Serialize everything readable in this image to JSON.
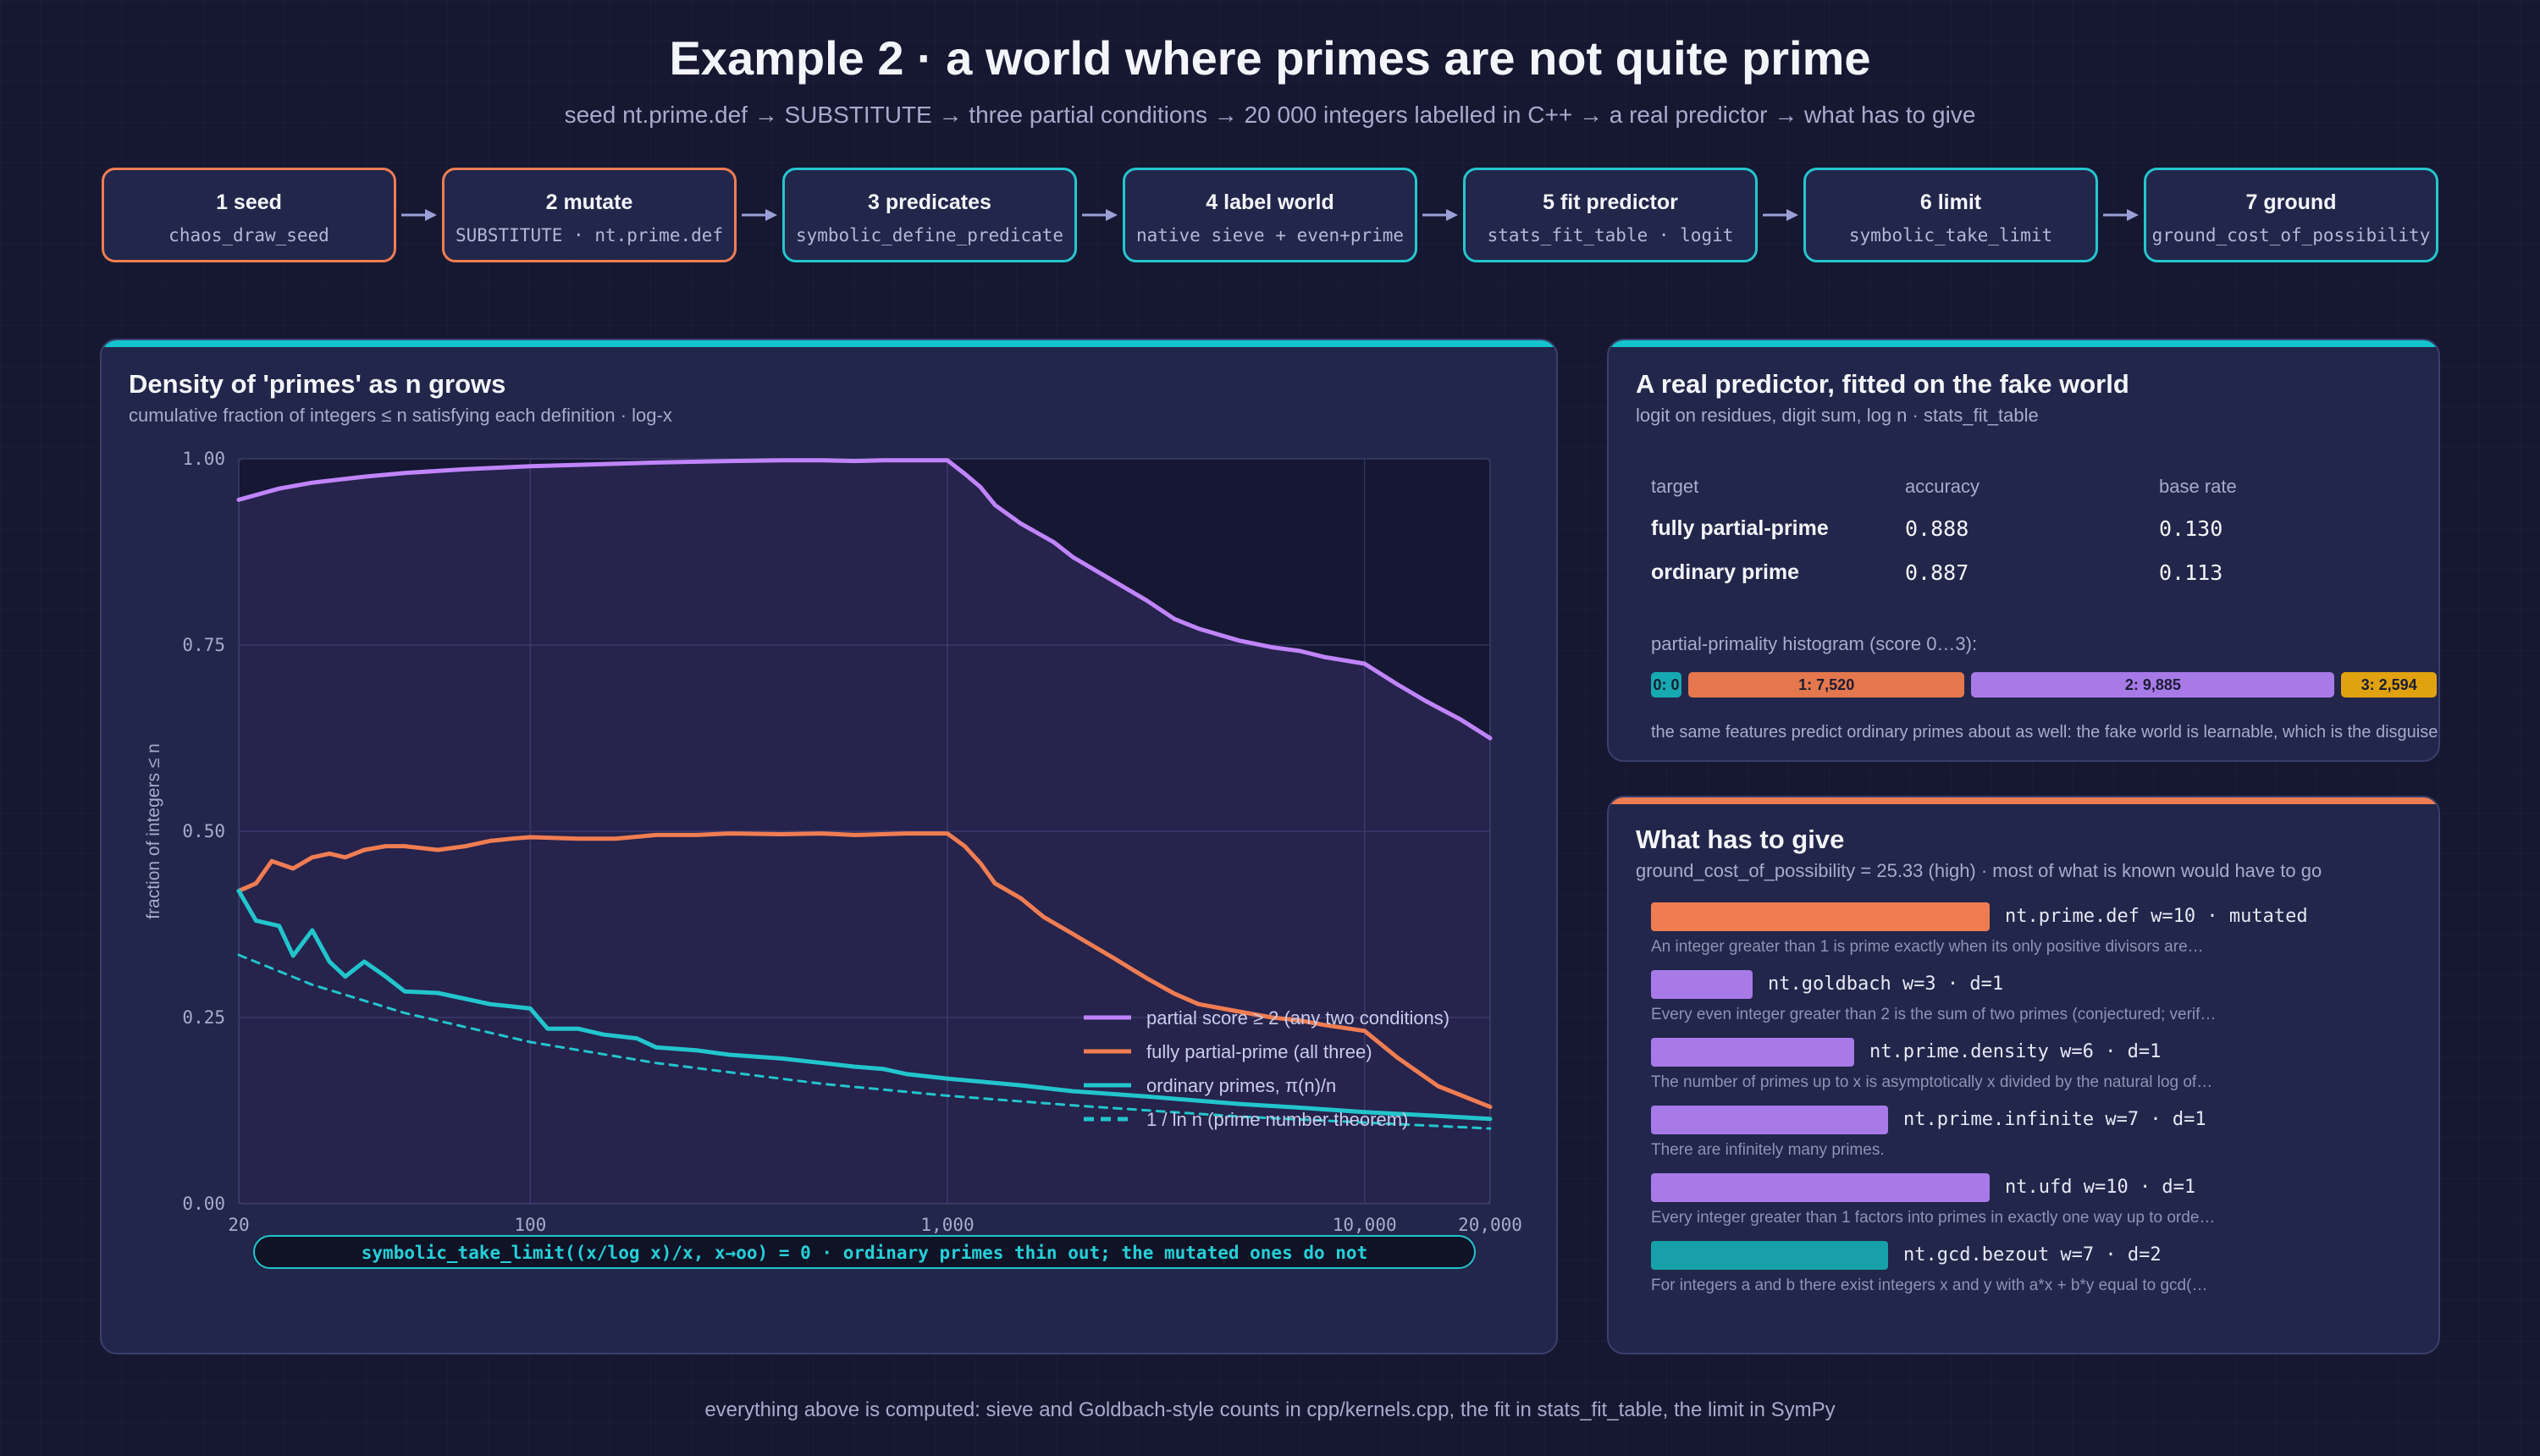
{
  "header": {
    "title": "Example 2 · a world where primes are not quite prime",
    "subtitle": "seed nt.prime.def → SUBSTITUTE → three partial conditions → 20 000 integers labelled in C++ → a real predictor → what has to give"
  },
  "pipeline": [
    {
      "title": "1 seed",
      "sub": "chaos_draw_seed",
      "accent": "orange"
    },
    {
      "title": "2 mutate",
      "sub": "SUBSTITUTE · nt.prime.def",
      "accent": "orange"
    },
    {
      "title": "3 predicates",
      "sub": "symbolic_define_predicate",
      "accent": "teal"
    },
    {
      "title": "4 label world",
      "sub": "native sieve + even+prime",
      "accent": "teal"
    },
    {
      "title": "5 fit predictor",
      "sub": "stats_fit_table · logit",
      "accent": "teal"
    },
    {
      "title": "6 limit",
      "sub": "symbolic_take_limit",
      "accent": "teal"
    },
    {
      "title": "7 ground",
      "sub": "ground_cost_of_possibility",
      "accent": "teal"
    }
  ],
  "density_panel": {
    "title": "Density of 'primes' as n grows",
    "subtitle": "cumulative fraction of integers ≤ n satisfying each definition · log-x",
    "limit_note": "symbolic_take_limit((x/log x)/x, x→oo) = 0 · ordinary primes thin out; the mutated ones do not"
  },
  "chart_data": {
    "type": "line",
    "title": "Density of 'primes' as n grows",
    "subtitle": "cumulative fraction of integers ≤ n satisfying each definition · log-x",
    "xlabel": "",
    "ylabel": "fraction of integers ≤ n",
    "xscale": "log",
    "xlim": [
      20,
      20000
    ],
    "ylim": [
      0,
      1
    ],
    "x_ticks": [
      {
        "value": 20,
        "label": "20"
      },
      {
        "value": 100,
        "label": "100"
      },
      {
        "value": 1000,
        "label": "1,000"
      },
      {
        "value": 10000,
        "label": "10,000"
      },
      {
        "value": 20000,
        "label": "20,000"
      }
    ],
    "y_ticks": [
      {
        "value": 0,
        "label": "0.00"
      },
      {
        "value": 0.25,
        "label": "0.25"
      },
      {
        "value": 0.5,
        "label": "0.50"
      },
      {
        "value": 0.75,
        "label": "0.75"
      },
      {
        "value": 1,
        "label": "1.00"
      }
    ],
    "grid": true,
    "legend_position": "bottom-right",
    "series": [
      {
        "name": "partial score ≥ 2 (any two conditions)",
        "color": "#c084fc",
        "style": "solid",
        "x": [
          20,
          25,
          30,
          40,
          50,
          70,
          100,
          150,
          200,
          300,
          400,
          500,
          600,
          700,
          800,
          900,
          1000,
          1100,
          1200,
          1300,
          1500,
          1800,
          2000,
          2500,
          3000,
          3500,
          4000,
          5000,
          6000,
          7000,
          8000,
          10000,
          12000,
          14000,
          17000,
          20000
        ],
        "y": [
          0.945,
          0.96,
          0.968,
          0.976,
          0.981,
          0.986,
          0.99,
          0.993,
          0.995,
          0.997,
          0.998,
          0.998,
          0.997,
          0.998,
          0.998,
          0.998,
          0.998,
          0.98,
          0.962,
          0.938,
          0.913,
          0.888,
          0.868,
          0.836,
          0.81,
          0.785,
          0.772,
          0.756,
          0.747,
          0.742,
          0.734,
          0.725,
          0.697,
          0.675,
          0.65,
          0.625
        ]
      },
      {
        "name": "fully partial-prime (all three)",
        "color": "#f07d52",
        "style": "solid",
        "x": [
          20,
          22,
          24,
          27,
          30,
          33,
          36,
          40,
          45,
          50,
          60,
          70,
          80,
          90,
          100,
          130,
          160,
          200,
          250,
          300,
          400,
          500,
          600,
          800,
          1000,
          1100,
          1200,
          1300,
          1500,
          1700,
          2000,
          2500,
          3000,
          3500,
          4000,
          5000,
          6000,
          7000,
          8000,
          10000,
          12000,
          15000,
          20000
        ],
        "y": [
          0.42,
          0.43,
          0.46,
          0.45,
          0.465,
          0.47,
          0.465,
          0.475,
          0.48,
          0.48,
          0.475,
          0.48,
          0.487,
          0.49,
          0.492,
          0.49,
          0.49,
          0.495,
          0.495,
          0.497,
          0.496,
          0.497,
          0.495,
          0.497,
          0.497,
          0.48,
          0.457,
          0.43,
          0.41,
          0.385,
          0.362,
          0.33,
          0.303,
          0.282,
          0.268,
          0.258,
          0.25,
          0.246,
          0.24,
          0.232,
          0.196,
          0.158,
          0.13
        ]
      },
      {
        "name": "ordinary primes, π(n)/n",
        "color": "#22c5cc",
        "style": "solid",
        "x": [
          20,
          22,
          25,
          27,
          30,
          33,
          36,
          40,
          45,
          50,
          60,
          70,
          80,
          90,
          100,
          110,
          130,
          150,
          180,
          200,
          250,
          300,
          400,
          500,
          600,
          700,
          800,
          1000,
          1500,
          2000,
          3000,
          5000,
          7000,
          10000,
          15000,
          20000
        ],
        "y": [
          0.42,
          0.38,
          0.373,
          0.333,
          0.367,
          0.325,
          0.305,
          0.325,
          0.305,
          0.285,
          0.283,
          0.275,
          0.268,
          0.265,
          0.262,
          0.235,
          0.235,
          0.227,
          0.222,
          0.21,
          0.206,
          0.2,
          0.195,
          0.189,
          0.184,
          0.181,
          0.174,
          0.168,
          0.159,
          0.151,
          0.144,
          0.134,
          0.129,
          0.123,
          0.118,
          0.114
        ]
      },
      {
        "name": "1 / ln n (prime number theorem)",
        "color": "#22c5cc",
        "style": "dashed",
        "x": [
          20,
          30,
          50,
          100,
          200,
          500,
          1000,
          2000,
          5000,
          10000,
          20000
        ],
        "y": [
          0.334,
          0.294,
          0.256,
          0.217,
          0.189,
          0.161,
          0.145,
          0.132,
          0.117,
          0.109,
          0.101
        ]
      }
    ]
  },
  "predictor_panel": {
    "title": "A real predictor, fitted on the fake world",
    "subtitle": "logit on residues, digit sum, log n · stats_fit_table",
    "columns": [
      "target",
      "accuracy",
      "base rate"
    ],
    "rows": [
      {
        "target": "fully partial-prime",
        "accuracy": "0.888",
        "base_rate": "0.130"
      },
      {
        "target": "ordinary prime",
        "accuracy": "0.887",
        "base_rate": "0.113"
      }
    ],
    "histogram_label": "partial-primality histogram (score 0…3):",
    "histogram": [
      {
        "label": "0: 0",
        "count": 0,
        "color": "#17a9b1"
      },
      {
        "label": "1: 7,520",
        "count": 7520,
        "color": "#e4774d"
      },
      {
        "label": "2: 9,885",
        "count": 9885,
        "color": "#a77ae8"
      },
      {
        "label": "3: 2,594",
        "count": 2594,
        "color": "#e0a20f"
      }
    ],
    "note": "the same features predict ordinary primes about as well: the fake world is learnable, which is the disguise"
  },
  "give_panel": {
    "title": "What has to give",
    "subtitle": "ground_cost_of_possibility = 25.33 (high) · most of what is known would have to go",
    "items": [
      {
        "label": "nt.prime.def w=10 · mutated",
        "weight": 10,
        "color": "#f07d52",
        "desc": "An integer greater than 1 is prime exactly when its only positive divisors are…"
      },
      {
        "label": "nt.goldbach w=3 · d=1",
        "weight": 3,
        "color": "#a77ae8",
        "desc": "Every even integer greater than 2 is the sum of two primes (conjectured; verif…"
      },
      {
        "label": "nt.prime.density w=6 · d=1",
        "weight": 6,
        "color": "#a77ae8",
        "desc": "The number of primes up to x is asymptotically x divided by the natural log of…"
      },
      {
        "label": "nt.prime.infinite w=7 · d=1",
        "weight": 7,
        "color": "#a77ae8",
        "desc": "There are infinitely many primes."
      },
      {
        "label": "nt.ufd w=10 · d=1",
        "weight": 10,
        "color": "#a77ae8",
        "desc": "Every integer greater than 1 factors into primes in exactly one way up to orde…"
      },
      {
        "label": "nt.gcd.bezout w=7 · d=2",
        "weight": 7,
        "color": "#17a0a8",
        "desc": "For integers a and b there exist integers x and y with a*x + b*y equal to gcd(…"
      }
    ]
  },
  "footer": "everything above is computed: sieve and Goldbach-style counts in cpp/kernels.cpp, the fit in stats_fit_table, the limit in SymPy"
}
